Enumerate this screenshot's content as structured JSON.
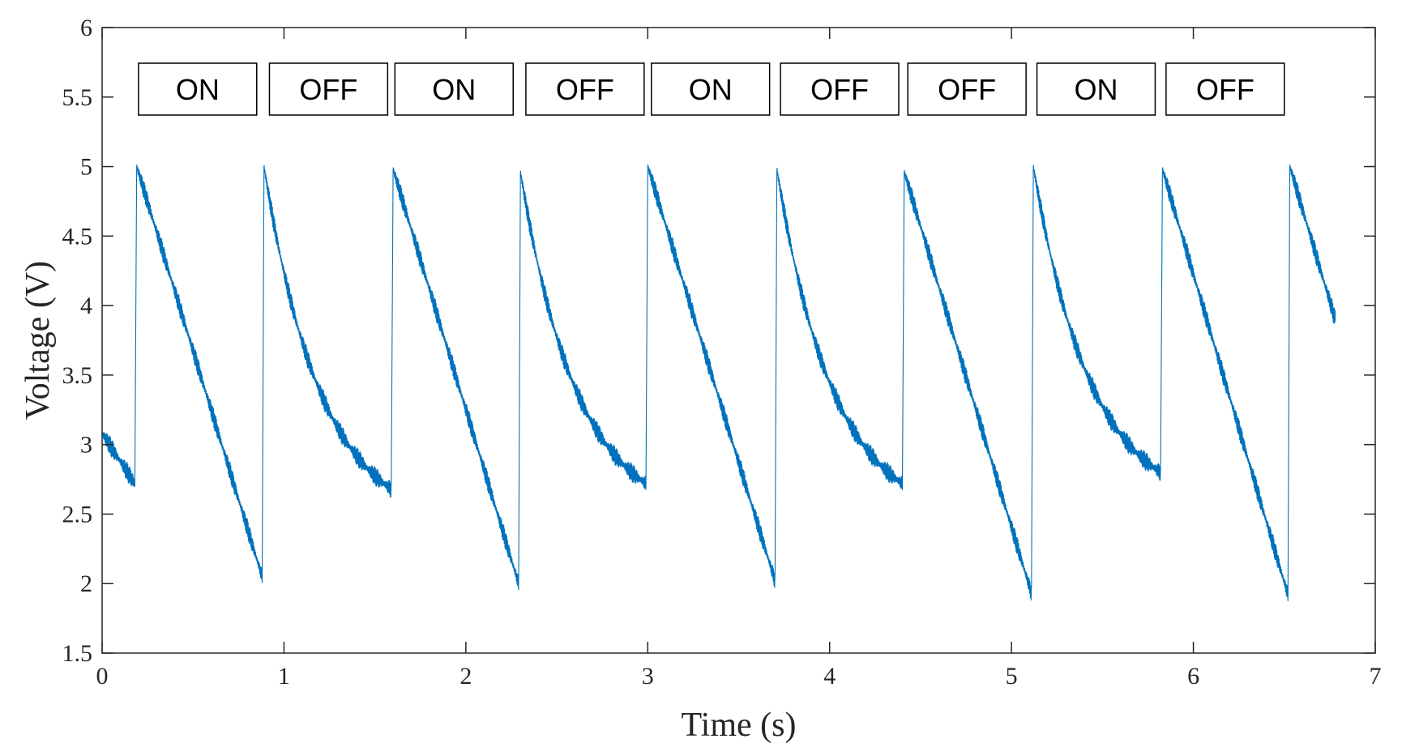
{
  "chart_data": {
    "type": "line",
    "xlabel": "Time (s)",
    "ylabel": "Voltage (V)",
    "xlim": [
      0,
      7
    ],
    "ylim": [
      1.5,
      6
    ],
    "xticks": [
      0,
      1,
      2,
      3,
      4,
      5,
      6,
      7
    ],
    "xtick_labels": [
      "0",
      "1",
      "2",
      "3",
      "4",
      "5",
      "6",
      "7"
    ],
    "yticks": [
      1.5,
      2,
      2.5,
      3,
      3.5,
      4,
      4.5,
      5,
      5.5,
      6
    ],
    "ytick_labels": [
      "1.5",
      "2",
      "2.5",
      "3",
      "3.5",
      "4",
      "4.5",
      "5",
      "5.5",
      "6"
    ],
    "grid": false,
    "line_color": "#0072bd",
    "state_labels": [
      {
        "label": "ON",
        "x_start": 0.2,
        "x_end": 0.85
      },
      {
        "label": "OFF",
        "x_start": 0.92,
        "x_end": 1.57
      },
      {
        "label": "ON",
        "x_start": 1.61,
        "x_end": 2.26
      },
      {
        "label": "OFF",
        "x_start": 2.33,
        "x_end": 2.98
      },
      {
        "label": "ON",
        "x_start": 3.02,
        "x_end": 3.67
      },
      {
        "label": "OFF",
        "x_start": 3.73,
        "x_end": 4.38
      },
      {
        "label": "OFF",
        "x_start": 4.43,
        "x_end": 5.08
      },
      {
        "label": "ON",
        "x_start": 5.14,
        "x_end": 5.79
      },
      {
        "label": "OFF",
        "x_start": 5.85,
        "x_end": 6.5
      }
    ],
    "series": [
      {
        "segments": [
          {
            "x_start": 0.0,
            "x_end": 0.18,
            "y_start": 3.08,
            "y_end": 2.72,
            "shape": "linear"
          },
          {
            "x_start": 0.19,
            "x_end": 0.88,
            "y_start": 5.0,
            "y_end": 2.05,
            "shape": "linear"
          },
          {
            "x_start": 0.89,
            "x_end": 1.59,
            "y_start": 5.0,
            "y_end": 2.68,
            "shape": "decay"
          },
          {
            "x_start": 1.6,
            "x_end": 2.29,
            "y_start": 4.98,
            "y_end": 2.0,
            "shape": "linear"
          },
          {
            "x_start": 2.3,
            "x_end": 2.99,
            "y_start": 4.96,
            "y_end": 2.72,
            "shape": "decay"
          },
          {
            "x_start": 3.0,
            "x_end": 3.7,
            "y_start": 5.0,
            "y_end": 2.02,
            "shape": "linear"
          },
          {
            "x_start": 3.71,
            "x_end": 4.4,
            "y_start": 4.98,
            "y_end": 2.72,
            "shape": "decay"
          },
          {
            "x_start": 4.41,
            "x_end": 5.11,
            "y_start": 4.96,
            "y_end": 1.93,
            "shape": "linear"
          },
          {
            "x_start": 5.12,
            "x_end": 5.82,
            "y_start": 5.0,
            "y_end": 2.8,
            "shape": "decay"
          },
          {
            "x_start": 5.83,
            "x_end": 6.52,
            "y_start": 4.98,
            "y_end": 1.92,
            "shape": "linear"
          },
          {
            "x_start": 6.53,
            "x_end": 6.78,
            "y_start": 5.0,
            "y_end": 3.9,
            "shape": "linear"
          }
        ]
      }
    ]
  }
}
